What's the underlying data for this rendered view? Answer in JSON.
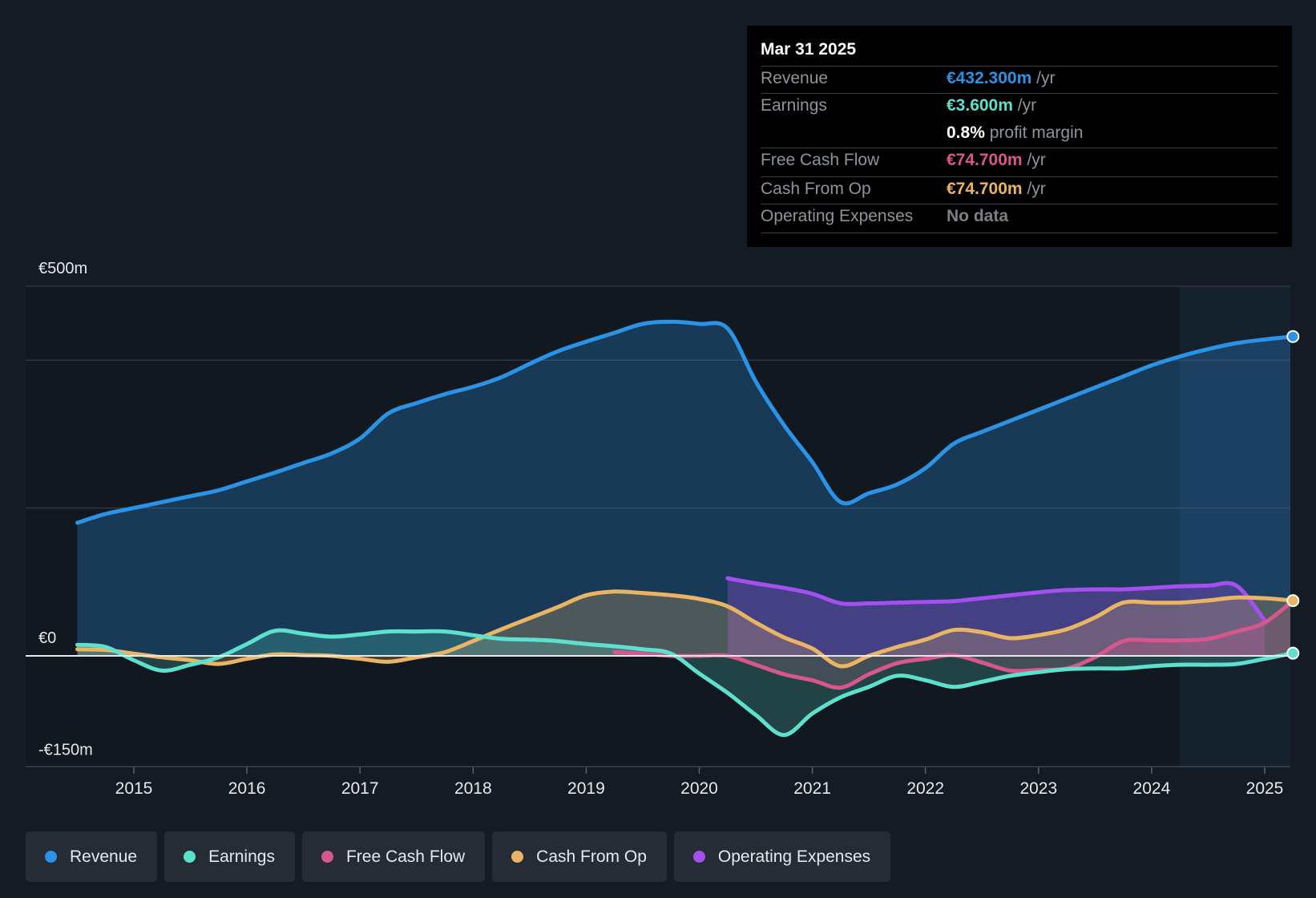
{
  "tooltip": {
    "date": "Mar 31 2025",
    "rows": [
      {
        "label": "Revenue",
        "value": "€432.300m",
        "unit": "/yr",
        "color": "#2a93e6"
      },
      {
        "label": "Earnings",
        "value": "€3.600m",
        "unit": "/yr",
        "color": "#5de0ce"
      },
      {
        "label": "",
        "value": "0.8%",
        "unit": "profit margin",
        "color": "#ffffff"
      },
      {
        "label": "Free Cash Flow",
        "value": "€74.700m",
        "unit": "/yr",
        "color": "#d8568e"
      },
      {
        "label": "Cash From Op",
        "value": "€74.700m",
        "unit": "/yr",
        "color": "#eab465"
      },
      {
        "label": "Operating Expenses",
        "value": "No data",
        "unit": "",
        "color": "#7b8087"
      }
    ]
  },
  "legend": [
    {
      "label": "Revenue",
      "color": "#2a93e6"
    },
    {
      "label": "Earnings",
      "color": "#5de0ce"
    },
    {
      "label": "Free Cash Flow",
      "color": "#d8568e"
    },
    {
      "label": "Cash From Op",
      "color": "#eab465"
    },
    {
      "label": "Operating Expenses",
      "color": "#a64ff0"
    }
  ],
  "chart_data": {
    "type": "area",
    "title": "",
    "xlabel": "",
    "ylabel": "",
    "currency": "€",
    "y_tick_labels": [
      "€500m",
      "€0",
      "-€150m"
    ],
    "ylim": [
      -150,
      500
    ],
    "xlim": [
      2014.2,
      2025.25
    ],
    "x_ticks": [
      2015,
      2016,
      2017,
      2018,
      2019,
      2020,
      2021,
      2022,
      2023,
      2024,
      2025
    ],
    "x_tick_labels": [
      "2015",
      "2016",
      "2017",
      "2018",
      "2019",
      "2020",
      "2021",
      "2022",
      "2023",
      "2024",
      "2025"
    ],
    "highlight_start": 2024.25,
    "series": [
      {
        "name": "Revenue",
        "color": "#2a93e6",
        "x": [
          2014.5,
          2014.75,
          2015.0,
          2015.25,
          2015.5,
          2015.75,
          2016.0,
          2016.25,
          2016.5,
          2016.75,
          2017.0,
          2017.25,
          2017.5,
          2017.75,
          2018.0,
          2018.25,
          2018.5,
          2018.75,
          2019.0,
          2019.25,
          2019.5,
          2019.75,
          2020.0,
          2020.25,
          2020.5,
          2020.75,
          2021.0,
          2021.25,
          2021.5,
          2021.75,
          2022.0,
          2022.25,
          2022.5,
          2022.75,
          2023.0,
          2023.25,
          2023.5,
          2023.75,
          2024.0,
          2024.25,
          2024.5,
          2024.75,
          2025.0,
          2025.25
        ],
        "values": [
          180,
          192,
          200,
          208,
          216,
          224,
          236,
          248,
          261,
          274,
          294,
          328,
          342,
          354,
          364,
          377,
          395,
          412,
          425,
          437,
          449,
          452,
          449,
          443,
          371,
          312,
          262,
          208,
          220,
          232,
          254,
          287,
          303,
          318,
          333,
          348,
          363,
          378,
          393,
          405,
          415,
          423,
          428,
          432
        ]
      },
      {
        "name": "Earnings",
        "color": "#5de0ce",
        "x": [
          2014.5,
          2014.75,
          2015.0,
          2015.25,
          2015.5,
          2015.75,
          2016.0,
          2016.25,
          2016.5,
          2016.75,
          2017.0,
          2017.25,
          2017.5,
          2017.75,
          2018.0,
          2018.25,
          2018.5,
          2018.75,
          2019.0,
          2019.25,
          2019.5,
          2019.75,
          2020.0,
          2020.25,
          2020.5,
          2020.75,
          2021.0,
          2021.25,
          2021.5,
          2021.75,
          2022.0,
          2022.25,
          2022.5,
          2022.75,
          2023.0,
          2023.25,
          2023.5,
          2023.75,
          2024.0,
          2024.25,
          2024.5,
          2024.75,
          2025.0,
          2025.25
        ],
        "values": [
          15,
          12,
          -6,
          -20,
          -12,
          -2,
          16,
          34,
          30,
          26,
          29,
          33,
          33,
          33,
          28,
          23,
          22,
          20,
          16,
          13,
          9,
          3,
          -24,
          -50,
          -80,
          -107,
          -78,
          -56,
          -42,
          -27,
          -33,
          -42,
          -35,
          -27,
          -22,
          -18,
          -17,
          -17,
          -14,
          -12,
          -12,
          -11,
          -4,
          3.6
        ]
      },
      {
        "name": "Free Cash Flow",
        "color": "#d8568e",
        "x": [
          2019.25,
          2019.5,
          2019.75,
          2020.0,
          2020.25,
          2020.5,
          2020.75,
          2021.0,
          2021.25,
          2021.5,
          2021.75,
          2022.0,
          2022.25,
          2022.5,
          2022.75,
          2023.0,
          2023.25,
          2023.5,
          2023.75,
          2024.0,
          2024.25,
          2024.5,
          2024.75,
          2025.0,
          2025.25
        ],
        "values": [
          5,
          3,
          0,
          0,
          0,
          -12,
          -25,
          -33,
          -43,
          -25,
          -10,
          -4,
          1,
          -9,
          -20,
          -19,
          -17,
          -2,
          20,
          21,
          21,
          23,
          33,
          45,
          74.7
        ]
      },
      {
        "name": "Cash From Op",
        "color": "#eab465",
        "x": [
          2014.5,
          2014.75,
          2015.0,
          2015.25,
          2015.5,
          2015.75,
          2016.0,
          2016.25,
          2016.5,
          2016.75,
          2017.0,
          2017.25,
          2017.5,
          2017.75,
          2018.0,
          2018.25,
          2018.5,
          2018.75,
          2019.0,
          2019.25,
          2019.5,
          2019.75,
          2020.0,
          2020.25,
          2020.5,
          2020.75,
          2021.0,
          2021.25,
          2021.5,
          2021.75,
          2022.0,
          2022.25,
          2022.5,
          2022.75,
          2023.0,
          2023.25,
          2023.5,
          2023.75,
          2024.0,
          2024.25,
          2024.5,
          2024.75,
          2025.0,
          2025.25
        ],
        "values": [
          9,
          8,
          3,
          -2,
          -6,
          -11,
          -4,
          2,
          1,
          0,
          -4,
          -8,
          -2,
          5,
          20,
          36,
          51,
          66,
          82,
          87,
          85,
          82,
          77,
          67,
          45,
          25,
          10,
          -14,
          0,
          12,
          22,
          35,
          32,
          24,
          28,
          36,
          52,
          72,
          72,
          72,
          75,
          79,
          78,
          74.7
        ]
      },
      {
        "name": "Operating Expenses",
        "color": "#a64ff0",
        "x": [
          2020.25,
          2020.5,
          2020.75,
          2021.0,
          2021.25,
          2021.5,
          2021.75,
          2022.0,
          2022.25,
          2022.5,
          2022.75,
          2023.0,
          2023.25,
          2023.5,
          2023.75,
          2024.0,
          2024.25,
          2024.5,
          2024.75,
          2025.0
        ],
        "values": [
          105,
          98,
          92,
          84,
          71,
          71,
          72,
          73,
          74,
          78,
          82,
          86,
          89,
          90,
          90,
          92,
          94,
          95,
          95,
          48
        ]
      }
    ]
  }
}
